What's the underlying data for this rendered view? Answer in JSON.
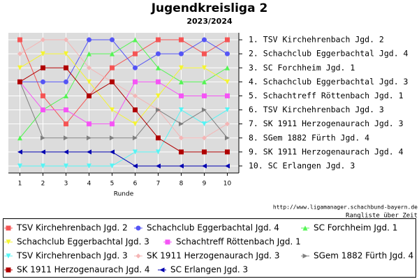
{
  "chart_data": {
    "type": "line",
    "title": "Jugendkreisliga 2",
    "subtitle": "2023/2024",
    "x_label": "Runde",
    "source": "http://www.ligamanager.schachbund-bayern.de",
    "caption": "Rangliste über Zeit",
    "x": [
      1,
      2,
      3,
      4,
      5,
      6,
      7,
      8,
      9,
      10
    ],
    "xlim": [
      0.5,
      10.5
    ],
    "xticks": [
      1,
      2,
      3,
      4,
      5,
      6,
      7,
      8,
      9,
      10
    ],
    "ylim": [
      10.5,
      0.5
    ],
    "yticks": [
      {
        "value": 1,
        "label": "1. TSV Kirchehrenbach Jgd. 2"
      },
      {
        "value": 2,
        "label": "2. Schachclub Eggerbachtal Jgd. 4"
      },
      {
        "value": 3,
        "label": "3. SC Forchheim Jgd. 1"
      },
      {
        "value": 4,
        "label": "4. Schachclub Eggerbachtal Jgd. 3"
      },
      {
        "value": 5,
        "label": "5. Schachtreff Röttenbach Jgd. 1"
      },
      {
        "value": 6,
        "label": "6. TSV Kirchehrenbach Jgd. 3"
      },
      {
        "value": 7,
        "label": "7. SK 1911 Herzogenaurach Jgd. 3"
      },
      {
        "value": 8,
        "label": "8. SGem 1882 Fürth Jgd. 4"
      },
      {
        "value": 9,
        "label": "9. SK 1911 Herzogenaurach Jgd. 4"
      },
      {
        "value": 10,
        "label": "10. SC Erlangen Jgd. 3"
      }
    ],
    "grid": true,
    "series": [
      {
        "name": "TSV Kirchehrenbach Jgd. 2",
        "color": "#f55555",
        "marker": "square",
        "values": [
          1,
          5,
          7,
          5,
          3,
          2,
          1,
          1,
          2,
          1
        ]
      },
      {
        "name": "Schachclub Eggerbachtal Jgd. 4",
        "color": "#5555f5",
        "marker": "circle",
        "values": [
          4,
          4,
          4,
          1,
          1,
          3,
          2,
          2,
          1,
          2
        ]
      },
      {
        "name": "SC Forchheim Jgd. 1",
        "color": "#55f555",
        "marker": "triangle-up",
        "values": [
          8,
          6,
          5,
          2,
          2,
          1,
          3,
          4,
          4,
          3
        ]
      },
      {
        "name": "Schachclub Eggerbachtal Jgd. 3",
        "color": "#f5f530",
        "marker": "triangle-down",
        "values": [
          3,
          2,
          2,
          4,
          6,
          7,
          5,
          3,
          3,
          4
        ]
      },
      {
        "name": "Schachtreff Röttenbach Jgd. 1",
        "color": "#f555f5",
        "marker": "square",
        "values": [
          4,
          6,
          6,
          7,
          7,
          4,
          4,
          5,
          5,
          5
        ]
      },
      {
        "name": "TSV Kirchehrenbach Jgd. 3",
        "color": "#55f5f5",
        "marker": "triangle-down",
        "values": [
          10,
          10,
          10,
          10,
          10,
          9,
          9,
          6,
          7,
          6
        ]
      },
      {
        "name": "SK 1911 Herzogenaurach Jgd. 3",
        "color": "#f5b5b5",
        "marker": "diamond",
        "values": [
          2,
          1,
          1,
          3,
          4,
          5,
          6,
          8,
          8,
          7
        ]
      },
      {
        "name": "SGem 1882 Fürth Jgd. 4",
        "color": "#808080",
        "marker": "triangle-right",
        "values": [
          4,
          8,
          8,
          8,
          8,
          8,
          6,
          7,
          6,
          8
        ]
      },
      {
        "name": "SK 1911 Herzogenaurach Jgd. 4",
        "color": "#b00000",
        "marker": "square",
        "values": [
          4,
          3,
          3,
          5,
          4,
          6,
          8,
          9,
          9,
          9
        ]
      },
      {
        "name": "SC Erlangen Jgd. 3",
        "color": "#0000b0",
        "marker": "triangle-left",
        "values": [
          9,
          9,
          9,
          9,
          9,
          10,
          10,
          10,
          10,
          10
        ]
      }
    ]
  }
}
